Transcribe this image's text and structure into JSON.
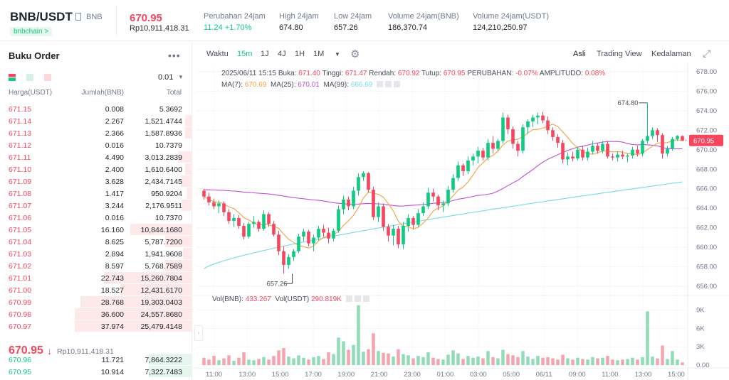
{
  "header": {
    "symbol": "BNB/USDT",
    "base_asset": "BNB",
    "chain_tag": "bnbchain >",
    "last_price": "670.95",
    "last_price_idr": "Rp10,911,418.31",
    "stats": [
      {
        "label": "Perubahan 24jam",
        "value": "11.24 +1.70%",
        "positive": true
      },
      {
        "label": "High 24jam",
        "value": "674.80"
      },
      {
        "label": "Low 24jam",
        "value": "657.26"
      },
      {
        "label": "Volume 24jam(BNB)",
        "value": "186,370.74"
      },
      {
        "label": "Volume 24jam(USDT)",
        "value": "124,210,250.97"
      }
    ]
  },
  "orderbook": {
    "title": "Buku Order",
    "more_icon": "more-dots-icon",
    "tick_size": "0.01",
    "columns": {
      "price": "Harga(USDT)",
      "amount": "Jumlah(BNB)",
      "total": "Total"
    },
    "asks": [
      {
        "price": "671.15",
        "amount": "0.008",
        "total": "5.3692",
        "depth": 0.0
      },
      {
        "price": "671.14",
        "amount": "2.267",
        "total": "1,521.4744",
        "depth": 0.06
      },
      {
        "price": "671.13",
        "amount": "2.366",
        "total": "1,587.8936",
        "depth": 0.06
      },
      {
        "price": "671.12",
        "amount": "0.016",
        "total": "10.7379",
        "depth": 0.0
      },
      {
        "price": "671.11",
        "amount": "4.490",
        "total": "3,013.2839",
        "depth": 0.12
      },
      {
        "price": "671.10",
        "amount": "2.400",
        "total": "1,610.6400",
        "depth": 0.06
      },
      {
        "price": "671.09",
        "amount": "3.628",
        "total": "2,434.7145",
        "depth": 0.1
      },
      {
        "price": "671.08",
        "amount": "1.417",
        "total": "950.9204",
        "depth": 0.04
      },
      {
        "price": "671.07",
        "amount": "3.244",
        "total": "2,176.9511",
        "depth": 0.09
      },
      {
        "price": "671.06",
        "amount": "0.016",
        "total": "10.7370",
        "depth": 0.0
      },
      {
        "price": "671.05",
        "amount": "16.160",
        "total": "10,844.1680",
        "depth": 0.53
      },
      {
        "price": "671.04",
        "amount": "8.625",
        "total": "5,787.7200",
        "depth": 0.23
      },
      {
        "price": "671.03",
        "amount": "2.894",
        "total": "1,941.9608",
        "depth": 0.08
      },
      {
        "price": "671.02",
        "amount": "8.597",
        "total": "5,768.7589",
        "depth": 0.23
      },
      {
        "price": "671.01",
        "amount": "22.743",
        "total": "15,260.7804",
        "depth": 0.75
      },
      {
        "price": "671.00",
        "amount": "18.527",
        "total": "12,431.6170",
        "depth": 0.61
      },
      {
        "price": "670.99",
        "amount": "28.768",
        "total": "19,303.0403",
        "depth": 0.95
      },
      {
        "price": "670.98",
        "amount": "36.600",
        "total": "24,557.8680",
        "depth": 1.0
      },
      {
        "price": "670.97",
        "amount": "37.974",
        "total": "25,479.4148",
        "depth": 1.0
      }
    ],
    "mid_price": "670.95",
    "mid_arrow": "↓",
    "mid_idr": "Rp10,911,418.31",
    "bids": [
      {
        "price": "670.96",
        "amount": "11.721",
        "total": "7,864.3222",
        "depth": 0.37
      },
      {
        "price": "670.95",
        "amount": "10.914",
        "total": "7,322.7483",
        "depth": 0.37
      }
    ]
  },
  "toolbar": {
    "time_label": "Waktu",
    "intervals": [
      "15m",
      "1J",
      "4J",
      "1H",
      "1M"
    ],
    "active_interval": "15m",
    "views": [
      "Asli",
      "Trading View",
      "Kedalaman"
    ],
    "active_view": "Asli"
  },
  "legend": {
    "ohlc": {
      "date": "2025/06/11 15:15",
      "open_label": "Buka:",
      "open": "671.40",
      "high_label": "Tinggi:",
      "high": "671.47",
      "low_label": "Rendah:",
      "low": "670.92",
      "close_label": "Tutup:",
      "close": "670.95",
      "change_label": "PERUBAHAN:",
      "change": "-0.07%",
      "amp_label": "AMPLITUDO:",
      "amp": "0.08%"
    },
    "ma7_label": "MA(7):",
    "ma7": "670.69",
    "ma25_label": "MA(25):",
    "ma25": "670.01",
    "ma99_label": "MA(99):",
    "ma99": "666.69",
    "vol_bnb_label": "Vol(BNB):",
    "vol_bnb": "433.267",
    "vol_usdt_label": "Vol(USDT)",
    "vol_usdt": "290.819K"
  },
  "colors": {
    "up": "#0ecb81",
    "down": "#f6465d",
    "ma7": "#f0a244",
    "ma25": "#c04fd4",
    "ma99": "#76d9e3"
  },
  "chart_data": {
    "type": "candlestick",
    "price_axis_ticks": [
      "678.00",
      "676.00",
      "674.00",
      "672.00",
      "670.00",
      "668.00",
      "666.00",
      "664.00",
      "662.00",
      "660.00",
      "658.00",
      "656.00"
    ],
    "volume_axis_ticks": [
      "9K",
      "6K",
      "3K",
      "0.00"
    ],
    "time_ticks": [
      "11:00",
      "13:00",
      "15:00",
      "17:00",
      "19:00",
      "21:00",
      "23:00",
      "01:00",
      "03:00",
      "05:00",
      "06/11",
      "09:00",
      "11:00",
      "13:00",
      "15:00"
    ],
    "current_price_tag": "670.95",
    "high_marker": "674.80",
    "low_marker": "657.26",
    "ylim": [
      655.5,
      678.5
    ],
    "vol_max": 10000,
    "candles": [
      [
        665.8,
        666.0,
        664.9,
        665.2,
        1200
      ],
      [
        665.2,
        665.6,
        664.3,
        664.6,
        900
      ],
      [
        664.6,
        665.0,
        663.9,
        664.2,
        1500
      ],
      [
        664.2,
        664.8,
        663.5,
        664.5,
        800
      ],
      [
        664.5,
        664.7,
        663.2,
        663.6,
        1100
      ],
      [
        663.6,
        663.9,
        662.4,
        662.7,
        1600
      ],
      [
        662.7,
        663.4,
        662.1,
        663.0,
        700
      ],
      [
        663.0,
        663.3,
        661.9,
        662.2,
        1200
      ],
      [
        662.2,
        662.5,
        660.8,
        661.1,
        2100
      ],
      [
        661.1,
        662.6,
        660.9,
        662.4,
        900
      ],
      [
        662.4,
        663.2,
        662.0,
        662.6,
        800
      ],
      [
        662.6,
        662.8,
        661.6,
        661.9,
        1000
      ],
      [
        661.9,
        663.8,
        661.7,
        663.4,
        1300
      ],
      [
        663.4,
        663.6,
        662.1,
        662.4,
        900
      ],
      [
        662.4,
        662.7,
        661.1,
        661.3,
        1500
      ],
      [
        661.3,
        661.7,
        659.2,
        659.6,
        2400
      ],
      [
        659.6,
        660.1,
        657.3,
        658.2,
        2800
      ],
      [
        658.2,
        659.3,
        657.8,
        659.0,
        1400
      ],
      [
        659.0,
        659.8,
        658.6,
        659.6,
        1100
      ],
      [
        659.6,
        661.4,
        659.4,
        661.1,
        1600
      ],
      [
        661.1,
        661.9,
        660.6,
        661.6,
        1200
      ],
      [
        661.6,
        661.8,
        660.1,
        660.4,
        900
      ],
      [
        660.4,
        661.3,
        659.6,
        661.0,
        1300
      ],
      [
        661.0,
        662.2,
        660.7,
        661.9,
        1500
      ],
      [
        661.9,
        662.3,
        661.1,
        661.5,
        1000
      ],
      [
        661.5,
        662.0,
        660.4,
        660.9,
        2100
      ],
      [
        660.9,
        661.9,
        660.6,
        661.7,
        1800
      ],
      [
        661.7,
        664.3,
        661.5,
        663.9,
        4500
      ],
      [
        663.9,
        665.3,
        663.4,
        664.9,
        3900
      ],
      [
        664.9,
        665.2,
        663.8,
        664.2,
        2500
      ],
      [
        664.2,
        666.2,
        663.9,
        665.8,
        3300
      ],
      [
        665.8,
        667.6,
        665.3,
        667.2,
        9800
      ],
      [
        667.2,
        667.8,
        666.8,
        667.6,
        2200
      ],
      [
        667.6,
        667.7,
        665.6,
        665.9,
        2600
      ],
      [
        665.9,
        666.2,
        662.8,
        663.1,
        5200
      ],
      [
        663.1,
        664.6,
        662.6,
        664.2,
        2300
      ],
      [
        664.2,
        664.5,
        661.7,
        662.1,
        2000
      ],
      [
        662.1,
        662.4,
        660.6,
        661.2,
        1900
      ],
      [
        661.2,
        662.3,
        660.2,
        661.9,
        1400
      ],
      [
        661.9,
        662.2,
        659.9,
        660.3,
        2600
      ],
      [
        660.3,
        662.6,
        659.8,
        662.2,
        1800
      ],
      [
        662.2,
        663.4,
        661.6,
        663.0,
        1600
      ],
      [
        663.0,
        663.2,
        661.9,
        662.3,
        1100
      ],
      [
        662.3,
        663.9,
        662.1,
        663.5,
        1500
      ],
      [
        663.5,
        664.6,
        663.2,
        664.2,
        1300
      ],
      [
        664.2,
        666.1,
        663.9,
        665.6,
        2100
      ],
      [
        665.6,
        666.0,
        664.7,
        665.2,
        1200
      ],
      [
        665.2,
        665.4,
        663.8,
        664.3,
        1000
      ],
      [
        664.3,
        664.8,
        663.6,
        664.5,
        900
      ],
      [
        664.5,
        666.3,
        664.2,
        665.9,
        1700
      ],
      [
        665.9,
        667.5,
        665.6,
        667.1,
        2400
      ],
      [
        667.1,
        668.8,
        666.8,
        668.4,
        1900
      ],
      [
        668.4,
        668.6,
        667.3,
        667.8,
        1000
      ],
      [
        667.8,
        669.3,
        667.5,
        668.9,
        1500
      ],
      [
        668.9,
        669.6,
        668.4,
        669.3,
        1200
      ],
      [
        669.3,
        670.3,
        668.6,
        669.9,
        1400
      ],
      [
        669.9,
        670.2,
        668.9,
        669.2,
        1100
      ],
      [
        669.2,
        671.1,
        668.9,
        670.7,
        2300
      ],
      [
        670.7,
        671.4,
        669.6,
        670.1,
        1300
      ],
      [
        670.1,
        671.1,
        669.9,
        670.9,
        1100
      ],
      [
        670.9,
        673.8,
        670.6,
        673.3,
        2500
      ],
      [
        673.3,
        673.6,
        671.6,
        672.1,
        1800
      ],
      [
        672.1,
        672.4,
        670.1,
        670.6,
        1600
      ],
      [
        670.6,
        670.9,
        669.3,
        669.9,
        1300
      ],
      [
        669.9,
        672.6,
        669.6,
        672.3,
        2300
      ],
      [
        672.3,
        673.1,
        671.6,
        672.9,
        1400
      ],
      [
        672.9,
        673.6,
        672.3,
        673.3,
        1000
      ],
      [
        673.3,
        673.8,
        672.6,
        673.5,
        1500
      ],
      [
        673.5,
        673.9,
        672.7,
        673.0,
        1200
      ],
      [
        673.0,
        673.4,
        671.6,
        672.0,
        1300
      ],
      [
        672.0,
        672.3,
        670.9,
        671.3,
        1100
      ],
      [
        671.3,
        671.6,
        670.2,
        670.7,
        900
      ],
      [
        670.7,
        671.0,
        668.6,
        669.0,
        1700
      ],
      [
        669.0,
        669.7,
        668.4,
        669.3,
        1100
      ],
      [
        669.3,
        669.8,
        668.8,
        669.1,
        900
      ],
      [
        669.1,
        670.3,
        668.9,
        670.0,
        1200
      ],
      [
        670.0,
        670.4,
        668.9,
        669.2,
        1000
      ],
      [
        669.2,
        670.2,
        668.9,
        669.8,
        900
      ],
      [
        669.8,
        670.9,
        669.5,
        670.4,
        1300
      ],
      [
        670.4,
        670.7,
        669.6,
        669.9,
        1100
      ],
      [
        669.9,
        670.9,
        669.6,
        670.6,
        1200
      ],
      [
        670.6,
        670.9,
        669.1,
        669.3,
        1500
      ],
      [
        669.3,
        669.6,
        668.9,
        669.2,
        900
      ],
      [
        669.2,
        669.8,
        668.8,
        669.5,
        800
      ],
      [
        669.5,
        669.9,
        669.0,
        669.3,
        900
      ],
      [
        669.3,
        669.6,
        668.7,
        669.4,
        1000
      ],
      [
        669.4,
        670.3,
        669.1,
        670.0,
        1200
      ],
      [
        670.0,
        670.4,
        669.3,
        669.6,
        900
      ],
      [
        669.6,
        671.1,
        669.3,
        670.9,
        1300
      ],
      [
        670.9,
        674.8,
        670.6,
        671.4,
        8800
      ],
      [
        671.4,
        672.3,
        671.1,
        672.0,
        1400
      ],
      [
        672.0,
        672.2,
        670.8,
        671.5,
        1100
      ],
      [
        671.5,
        671.7,
        669.1,
        669.6,
        3200
      ],
      [
        669.6,
        670.4,
        669.3,
        670.1,
        1000
      ],
      [
        670.1,
        671.3,
        669.9,
        671.1,
        2300
      ],
      [
        671.1,
        671.5,
        670.9,
        671.4,
        900
      ],
      [
        671.4,
        671.47,
        670.92,
        670.95,
        433
      ]
    ]
  }
}
